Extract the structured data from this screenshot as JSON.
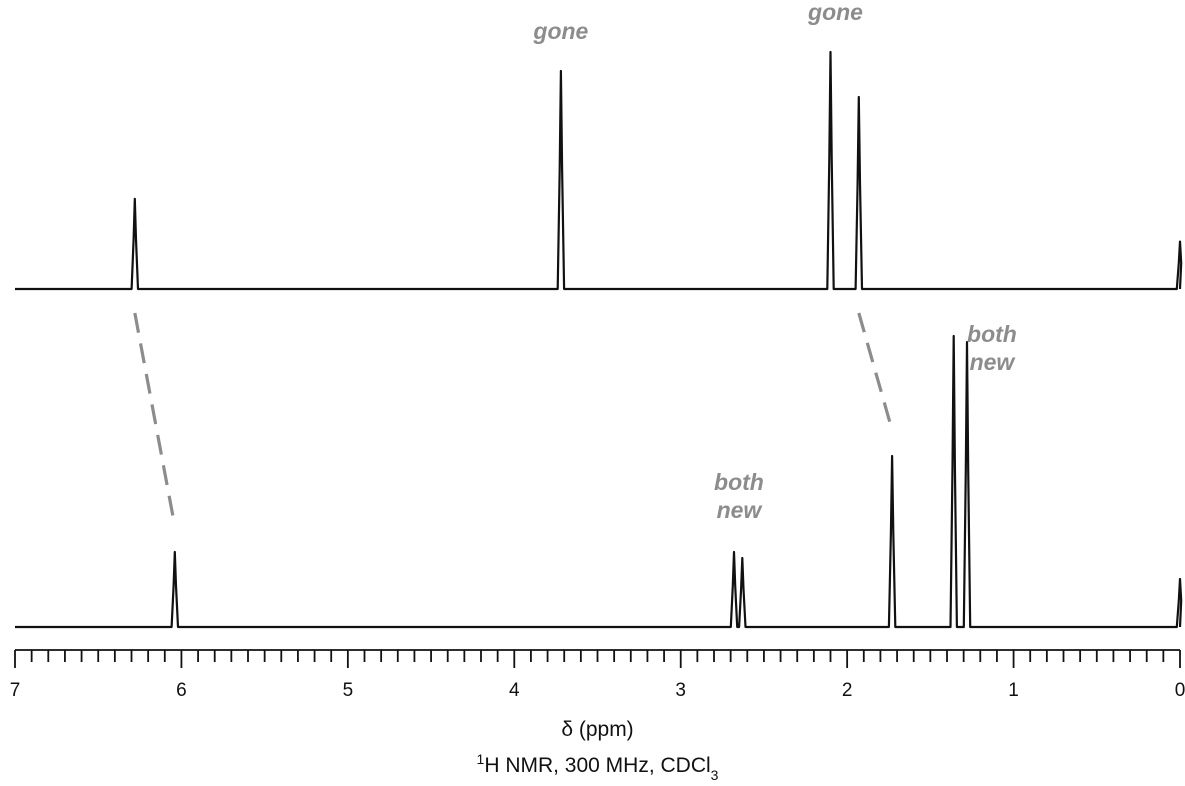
{
  "chart_data": {
    "type": "line",
    "title": "",
    "xlabel": "δ (ppm)",
    "ylabel": "",
    "subtitle": {
      "mass_number": "1",
      "text_main": "H NMR, 300 MHz, CDCl",
      "subscript": "3"
    },
    "xlim": [
      7,
      0
    ],
    "x_ticks": [
      "7",
      "6",
      "5",
      "4",
      "3",
      "2",
      "1",
      "0"
    ],
    "grid": false,
    "series": [
      {
        "id": "top",
        "peaks": [
          {
            "ppm": 6.28,
            "height": 0.38
          },
          {
            "ppm": 3.72,
            "height": 0.92
          },
          {
            "ppm": 2.1,
            "height": 1.0
          },
          {
            "ppm": 1.93,
            "height": 0.81
          },
          {
            "ppm": 0.0,
            "height": 0.2
          }
        ]
      },
      {
        "id": "bottom",
        "peaks": [
          {
            "ppm": 6.04,
            "height": 0.25
          },
          {
            "ppm": 2.68,
            "height": 0.25
          },
          {
            "ppm": 2.63,
            "height": 0.23
          },
          {
            "ppm": 1.73,
            "height": 0.57
          },
          {
            "ppm": 1.36,
            "height": 0.97
          },
          {
            "ppm": 1.28,
            "height": 0.95
          },
          {
            "ppm": 0.0,
            "height": 0.16
          }
        ]
      }
    ],
    "annotations": [
      {
        "id": "gone-1",
        "lines": [
          "gone"
        ],
        "ppm": 3.72,
        "trace": "top"
      },
      {
        "id": "gone-2",
        "lines": [
          "gone"
        ],
        "ppm": 2.07,
        "trace": "top"
      },
      {
        "id": "both-new-1",
        "lines": [
          "both",
          "new"
        ],
        "ppm": 2.65,
        "trace": "bottom"
      },
      {
        "id": "both-new-2",
        "lines": [
          "both",
          "new"
        ],
        "ppm": 1.13,
        "trace": "bottom"
      }
    ],
    "shift_guides": [
      {
        "from_ppm": 6.28,
        "to_ppm": 6.04
      },
      {
        "from_ppm": 1.93,
        "to_ppm": 1.73
      }
    ]
  },
  "colors": {
    "trace": "#111111",
    "annotation": "#8c8c8c",
    "guide": "#8c8c8c"
  }
}
